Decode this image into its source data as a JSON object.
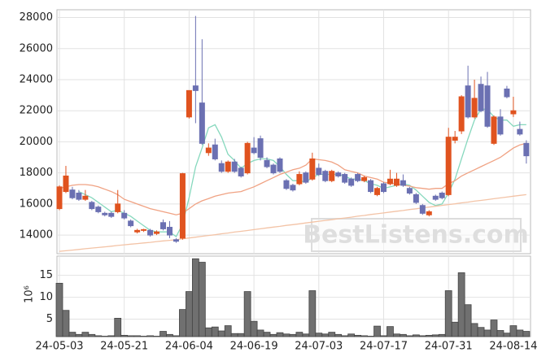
{
  "chart_data": [
    {
      "type": "candlestick",
      "categories": [
        "24-05-03",
        null,
        null,
        null,
        null,
        null,
        null,
        null,
        null,
        null,
        "24-05-21",
        null,
        null,
        null,
        null,
        null,
        null,
        null,
        null,
        null,
        "24-06-04",
        null,
        null,
        null,
        null,
        null,
        null,
        null,
        null,
        null,
        "24-06-19",
        null,
        null,
        null,
        null,
        null,
        null,
        null,
        null,
        null,
        "24-07-03",
        null,
        null,
        null,
        null,
        null,
        null,
        null,
        null,
        null,
        "24-07-17",
        null,
        null,
        null,
        null,
        null,
        null,
        null,
        null,
        null,
        "24-07-31",
        null,
        null,
        null,
        null,
        null,
        null,
        null,
        null,
        null,
        "24-08-14",
        null,
        null
      ],
      "open": [
        15700,
        16800,
        16900,
        16700,
        16300,
        16100,
        15800,
        15400,
        15400,
        15500,
        15400,
        14900,
        14200,
        14300,
        14300,
        14100,
        14800,
        14500,
        13700,
        13800,
        21600,
        23600,
        22500,
        19300,
        19800,
        18600,
        18100,
        18700,
        18300,
        18000,
        19600,
        20200,
        18800,
        18500,
        18900,
        17500,
        17200,
        17300,
        18000,
        17600,
        18300,
        18100,
        17500,
        18000,
        17900,
        17600,
        17900,
        17500,
        17500,
        16600,
        17300,
        17300,
        17200,
        17500,
        17000,
        16600,
        15900,
        15300,
        16500,
        16700,
        16600,
        20100,
        20700,
        23600,
        21600,
        23700,
        23600,
        19900,
        21600,
        23400,
        21800,
        20800,
        19900
      ],
      "high": [
        17200,
        18450,
        17100,
        16900,
        16900,
        16200,
        15900,
        15500,
        15500,
        16900,
        15600,
        15000,
        14400,
        14400,
        14400,
        14300,
        15000,
        14900,
        13800,
        18000,
        23300,
        28100,
        26600,
        19900,
        20200,
        18800,
        18800,
        18900,
        18400,
        20000,
        20300,
        20400,
        19000,
        18600,
        19000,
        17600,
        17300,
        18100,
        18100,
        19300,
        18600,
        18200,
        18200,
        18100,
        18000,
        17700,
        18000,
        17800,
        17600,
        17100,
        17400,
        18200,
        18000,
        17900,
        17100,
        16700,
        16000,
        15600,
        16600,
        16800,
        20900,
        20700,
        23000,
        24900,
        24000,
        24200,
        24500,
        21700,
        22100,
        23600,
        22900,
        21300,
        20100
      ],
      "low": [
        15600,
        16700,
        16300,
        16200,
        16200,
        15600,
        15400,
        15200,
        15100,
        15400,
        15000,
        14500,
        14100,
        14200,
        13900,
        14000,
        14300,
        13800,
        13500,
        13700,
        21500,
        21200,
        19800,
        19100,
        18800,
        18000,
        18000,
        18000,
        17700,
        17900,
        19200,
        18800,
        18300,
        17900,
        18000,
        16900,
        16800,
        17200,
        17300,
        17500,
        17800,
        17400,
        17400,
        17700,
        17300,
        17100,
        17400,
        17400,
        16700,
        16500,
        16700,
        17200,
        17100,
        17100,
        16600,
        16000,
        15300,
        15200,
        16200,
        16300,
        16500,
        19900,
        20500,
        21500,
        21500,
        21900,
        20900,
        19800,
        20400,
        22800,
        21600,
        20400,
        18600
      ],
      "close": [
        17100,
        17800,
        16400,
        16300,
        16500,
        15700,
        15500,
        15300,
        15200,
        16000,
        15100,
        14600,
        14300,
        14350,
        14000,
        14200,
        14400,
        14000,
        13600,
        17950,
        23300,
        23300,
        19900,
        19600,
        18900,
        18100,
        18700,
        18100,
        17800,
        19900,
        19300,
        19000,
        18400,
        18000,
        18100,
        17000,
        16900,
        17900,
        17400,
        18900,
        17900,
        17500,
        18100,
        17800,
        17400,
        17200,
        17500,
        17700,
        16800,
        17000,
        16800,
        17600,
        17600,
        17200,
        16700,
        16100,
        15400,
        15500,
        16300,
        16400,
        20300,
        20300,
        22900,
        21600,
        22800,
        22000,
        21000,
        21600,
        20500,
        22900,
        22000,
        20500,
        19100
      ],
      "up_color": "#e0531f",
      "down_color": "#6b70b2",
      "lines": [
        {
          "color": "#86d8bd",
          "values": [
            null,
            null,
            null,
            16800,
            16600,
            16400,
            16100,
            15800,
            15500,
            15600,
            15400,
            15200,
            14900,
            14600,
            14300,
            14200,
            14200,
            14200,
            13900,
            14700,
            16400,
            18400,
            19600,
            20900,
            21100,
            20300,
            19200,
            18800,
            18300,
            18600,
            18800,
            18900,
            18900,
            18800,
            18400,
            17900,
            17500,
            17500,
            17400,
            17700,
            17900,
            17900,
            17900,
            17900,
            17800,
            17600,
            17600,
            17500,
            17300,
            17200,
            17000,
            17100,
            17200,
            17300,
            17200,
            16900,
            16500,
            16100,
            15900,
            16000,
            16700,
            17600,
            18900,
            20200,
            21400,
            22100,
            22100,
            21600,
            21400,
            21400,
            21000,
            21100,
            21100
          ]
        },
        {
          "color": "#f0a283",
          "values": [
            17000,
            17100,
            17200,
            17250,
            17250,
            17200,
            17100,
            16950,
            16800,
            16600,
            16300,
            16150,
            16000,
            15850,
            15700,
            15600,
            15500,
            15400,
            15300,
            15400,
            15700,
            16000,
            16200,
            16350,
            16500,
            16600,
            16700,
            16750,
            16800,
            16950,
            17100,
            17300,
            17500,
            17700,
            17900,
            18050,
            18200,
            18300,
            18500,
            18900,
            18850,
            18800,
            18700,
            18500,
            18200,
            18100,
            18000,
            17800,
            17700,
            17600,
            17400,
            17350,
            17300,
            17200,
            17150,
            17050,
            17000,
            16950,
            17000,
            17000,
            17300,
            17500,
            17800,
            18000,
            18200,
            18400,
            18600,
            18800,
            19000,
            19300,
            19600,
            19800,
            19900
          ]
        },
        {
          "color": "#f3c3a6",
          "values": [
            12950,
            12990,
            13030,
            13070,
            13120,
            13160,
            13200,
            13240,
            13280,
            13330,
            13370,
            13410,
            13450,
            13490,
            13530,
            13580,
            13620,
            13660,
            13700,
            13760,
            13810,
            13860,
            13920,
            13970,
            14020,
            14080,
            14130,
            14190,
            14240,
            14290,
            14350,
            14400,
            14460,
            14510,
            14560,
            14620,
            14670,
            14720,
            14780,
            14830,
            14890,
            14940,
            14990,
            15050,
            15100,
            15150,
            15210,
            15260,
            15320,
            15370,
            15420,
            15480,
            15530,
            15580,
            15640,
            15690,
            15750,
            15800,
            15850,
            15910,
            15960,
            16010,
            16070,
            16120,
            16180,
            16230,
            16280,
            16340,
            16390,
            16440,
            16500,
            16550,
            16600
          ]
        }
      ],
      "ylim": [
        12800,
        28500
      ],
      "yticks": [
        14000,
        16000,
        18000,
        20000,
        22000,
        24000,
        26000,
        28000
      ],
      "grid": true,
      "watermark": "BestListens.com"
    },
    {
      "type": "bar",
      "ylabel": "10⁶",
      "values": [
        13.2,
        7,
        2,
        1.5,
        2,
        1.5,
        1.2,
        1.1,
        1.2,
        5.2,
        1.3,
        1.2,
        1.2,
        1.1,
        1.2,
        1.1,
        2.2,
        1.5,
        1.2,
        7.2,
        11.3,
        18.8,
        18,
        3,
        3.2,
        2.3,
        3.5,
        1.7,
        1.7,
        11.3,
        4.5,
        2.5,
        2,
        1.5,
        1.9,
        1.6,
        1.5,
        2,
        1.6,
        11.5,
        1.8,
        1.6,
        2,
        1.5,
        1.2,
        1.6,
        1.3,
        1.2,
        1.1,
        3.4,
        1.2,
        3.3,
        1.6,
        1.5,
        1.2,
        1.4,
        1.2,
        1.3,
        1.4,
        1.5,
        11.5,
        4.3,
        15.6,
        8.3,
        4,
        3.1,
        2.5,
        4.8,
        2.4,
        1.8,
        3.5,
        2.5,
        2.2
      ],
      "color": "#707070",
      "ylim": [
        1.0,
        19.4
      ],
      "yticks": [
        5,
        10,
        15
      ],
      "grid": true
    }
  ]
}
